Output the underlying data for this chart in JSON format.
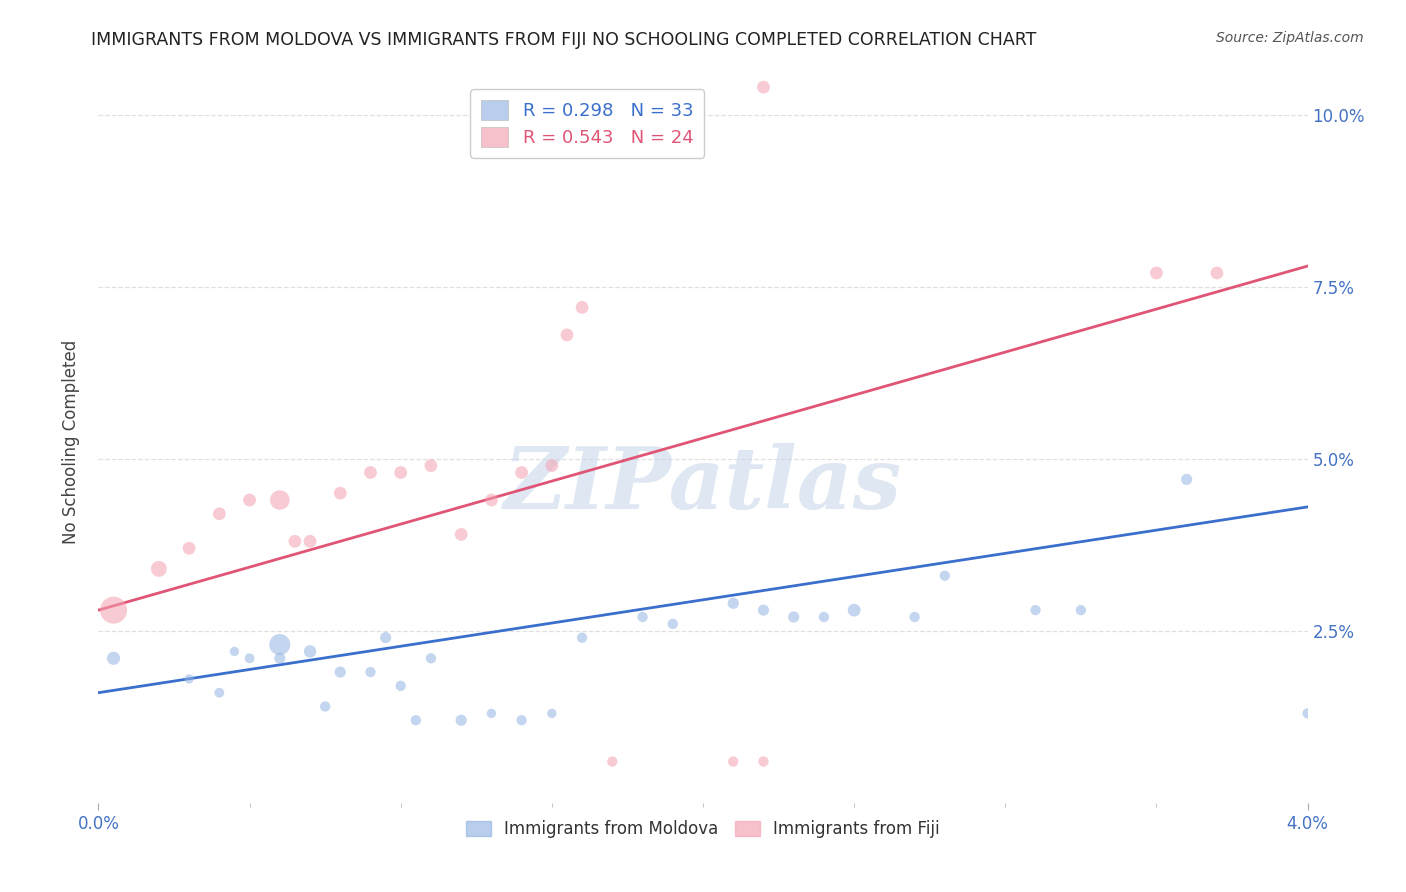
{
  "title": "IMMIGRANTS FROM MOLDOVA VS IMMIGRANTS FROM FIJI NO SCHOOLING COMPLETED CORRELATION CHART",
  "source": "Source: ZipAtlas.com",
  "ylabel": "No Schooling Completed",
  "legend_label_blue": "Immigrants from Moldova",
  "legend_label_pink": "Immigrants from Fiji",
  "legend_R_blue": "0.298",
  "legend_N_blue": "33",
  "legend_R_pink": "0.543",
  "legend_N_pink": "24",
  "blue_color": "#92B4E3",
  "pink_color": "#F4A0B0",
  "blue_line_color": "#3B6FCC",
  "pink_line_color": "#E05575",
  "xlim": [
    0.0,
    0.04
  ],
  "ylim": [
    0.0,
    0.105
  ],
  "blue_scatter_x": [
    0.0005,
    0.003,
    0.004,
    0.0045,
    0.005,
    0.006,
    0.006,
    0.007,
    0.0075,
    0.008,
    0.009,
    0.0095,
    0.01,
    0.0105,
    0.011,
    0.012,
    0.013,
    0.014,
    0.015,
    0.016,
    0.018,
    0.019,
    0.021,
    0.022,
    0.023,
    0.024,
    0.025,
    0.027,
    0.028,
    0.031,
    0.0325,
    0.036,
    0.04
  ],
  "blue_scatter_y": [
    0.021,
    0.018,
    0.016,
    0.022,
    0.021,
    0.023,
    0.021,
    0.022,
    0.014,
    0.019,
    0.019,
    0.024,
    0.017,
    0.012,
    0.021,
    0.012,
    0.013,
    0.012,
    0.013,
    0.024,
    0.027,
    0.026,
    0.029,
    0.028,
    0.027,
    0.027,
    0.028,
    0.027,
    0.033,
    0.028,
    0.028,
    0.047,
    0.013
  ],
  "blue_scatter_sizes": [
    90,
    45,
    50,
    45,
    50,
    230,
    65,
    80,
    55,
    65,
    55,
    65,
    55,
    55,
    55,
    65,
    45,
    55,
    45,
    55,
    55,
    55,
    65,
    65,
    65,
    55,
    85,
    55,
    55,
    55,
    55,
    65,
    55
  ],
  "pink_scatter_x": [
    0.0005,
    0.002,
    0.003,
    0.004,
    0.005,
    0.006,
    0.0065,
    0.007,
    0.008,
    0.009,
    0.01,
    0.011,
    0.012,
    0.013,
    0.014,
    0.015,
    0.0155,
    0.016,
    0.017,
    0.021,
    0.022,
    0.022,
    0.035,
    0.037
  ],
  "pink_scatter_y": [
    0.028,
    0.034,
    0.037,
    0.042,
    0.044,
    0.044,
    0.038,
    0.038,
    0.045,
    0.048,
    0.048,
    0.049,
    0.039,
    0.044,
    0.048,
    0.049,
    0.068,
    0.072,
    0.006,
    0.006,
    0.006,
    0.104,
    0.077,
    0.077
  ],
  "pink_scatter_sizes": [
    380,
    130,
    85,
    85,
    85,
    200,
    85,
    85,
    85,
    85,
    85,
    85,
    85,
    85,
    85,
    85,
    85,
    85,
    55,
    55,
    55,
    85,
    85,
    85
  ],
  "blue_trendline_x": [
    0.0,
    0.04
  ],
  "blue_trendline_y": [
    0.016,
    0.043
  ],
  "pink_trendline_x": [
    0.0,
    0.04
  ],
  "pink_trendline_y": [
    0.028,
    0.078
  ],
  "ytick_positions": [
    0.0,
    0.025,
    0.05,
    0.075,
    0.1
  ],
  "ytick_labels": [
    "",
    "2.5%",
    "5.0%",
    "7.5%",
    "10.0%"
  ],
  "xtick_positions": [
    0.0,
    0.04
  ],
  "xtick_labels": [
    "0.0%",
    "4.0%"
  ],
  "grid_color": "#DDDDDD",
  "watermark_text": "ZIPatlas",
  "watermark_color": "#C5D5EA",
  "background_color": "#FFFFFF",
  "axis_tick_color": "#4472C4",
  "title_color": "#222222",
  "ylabel_color": "#444444"
}
